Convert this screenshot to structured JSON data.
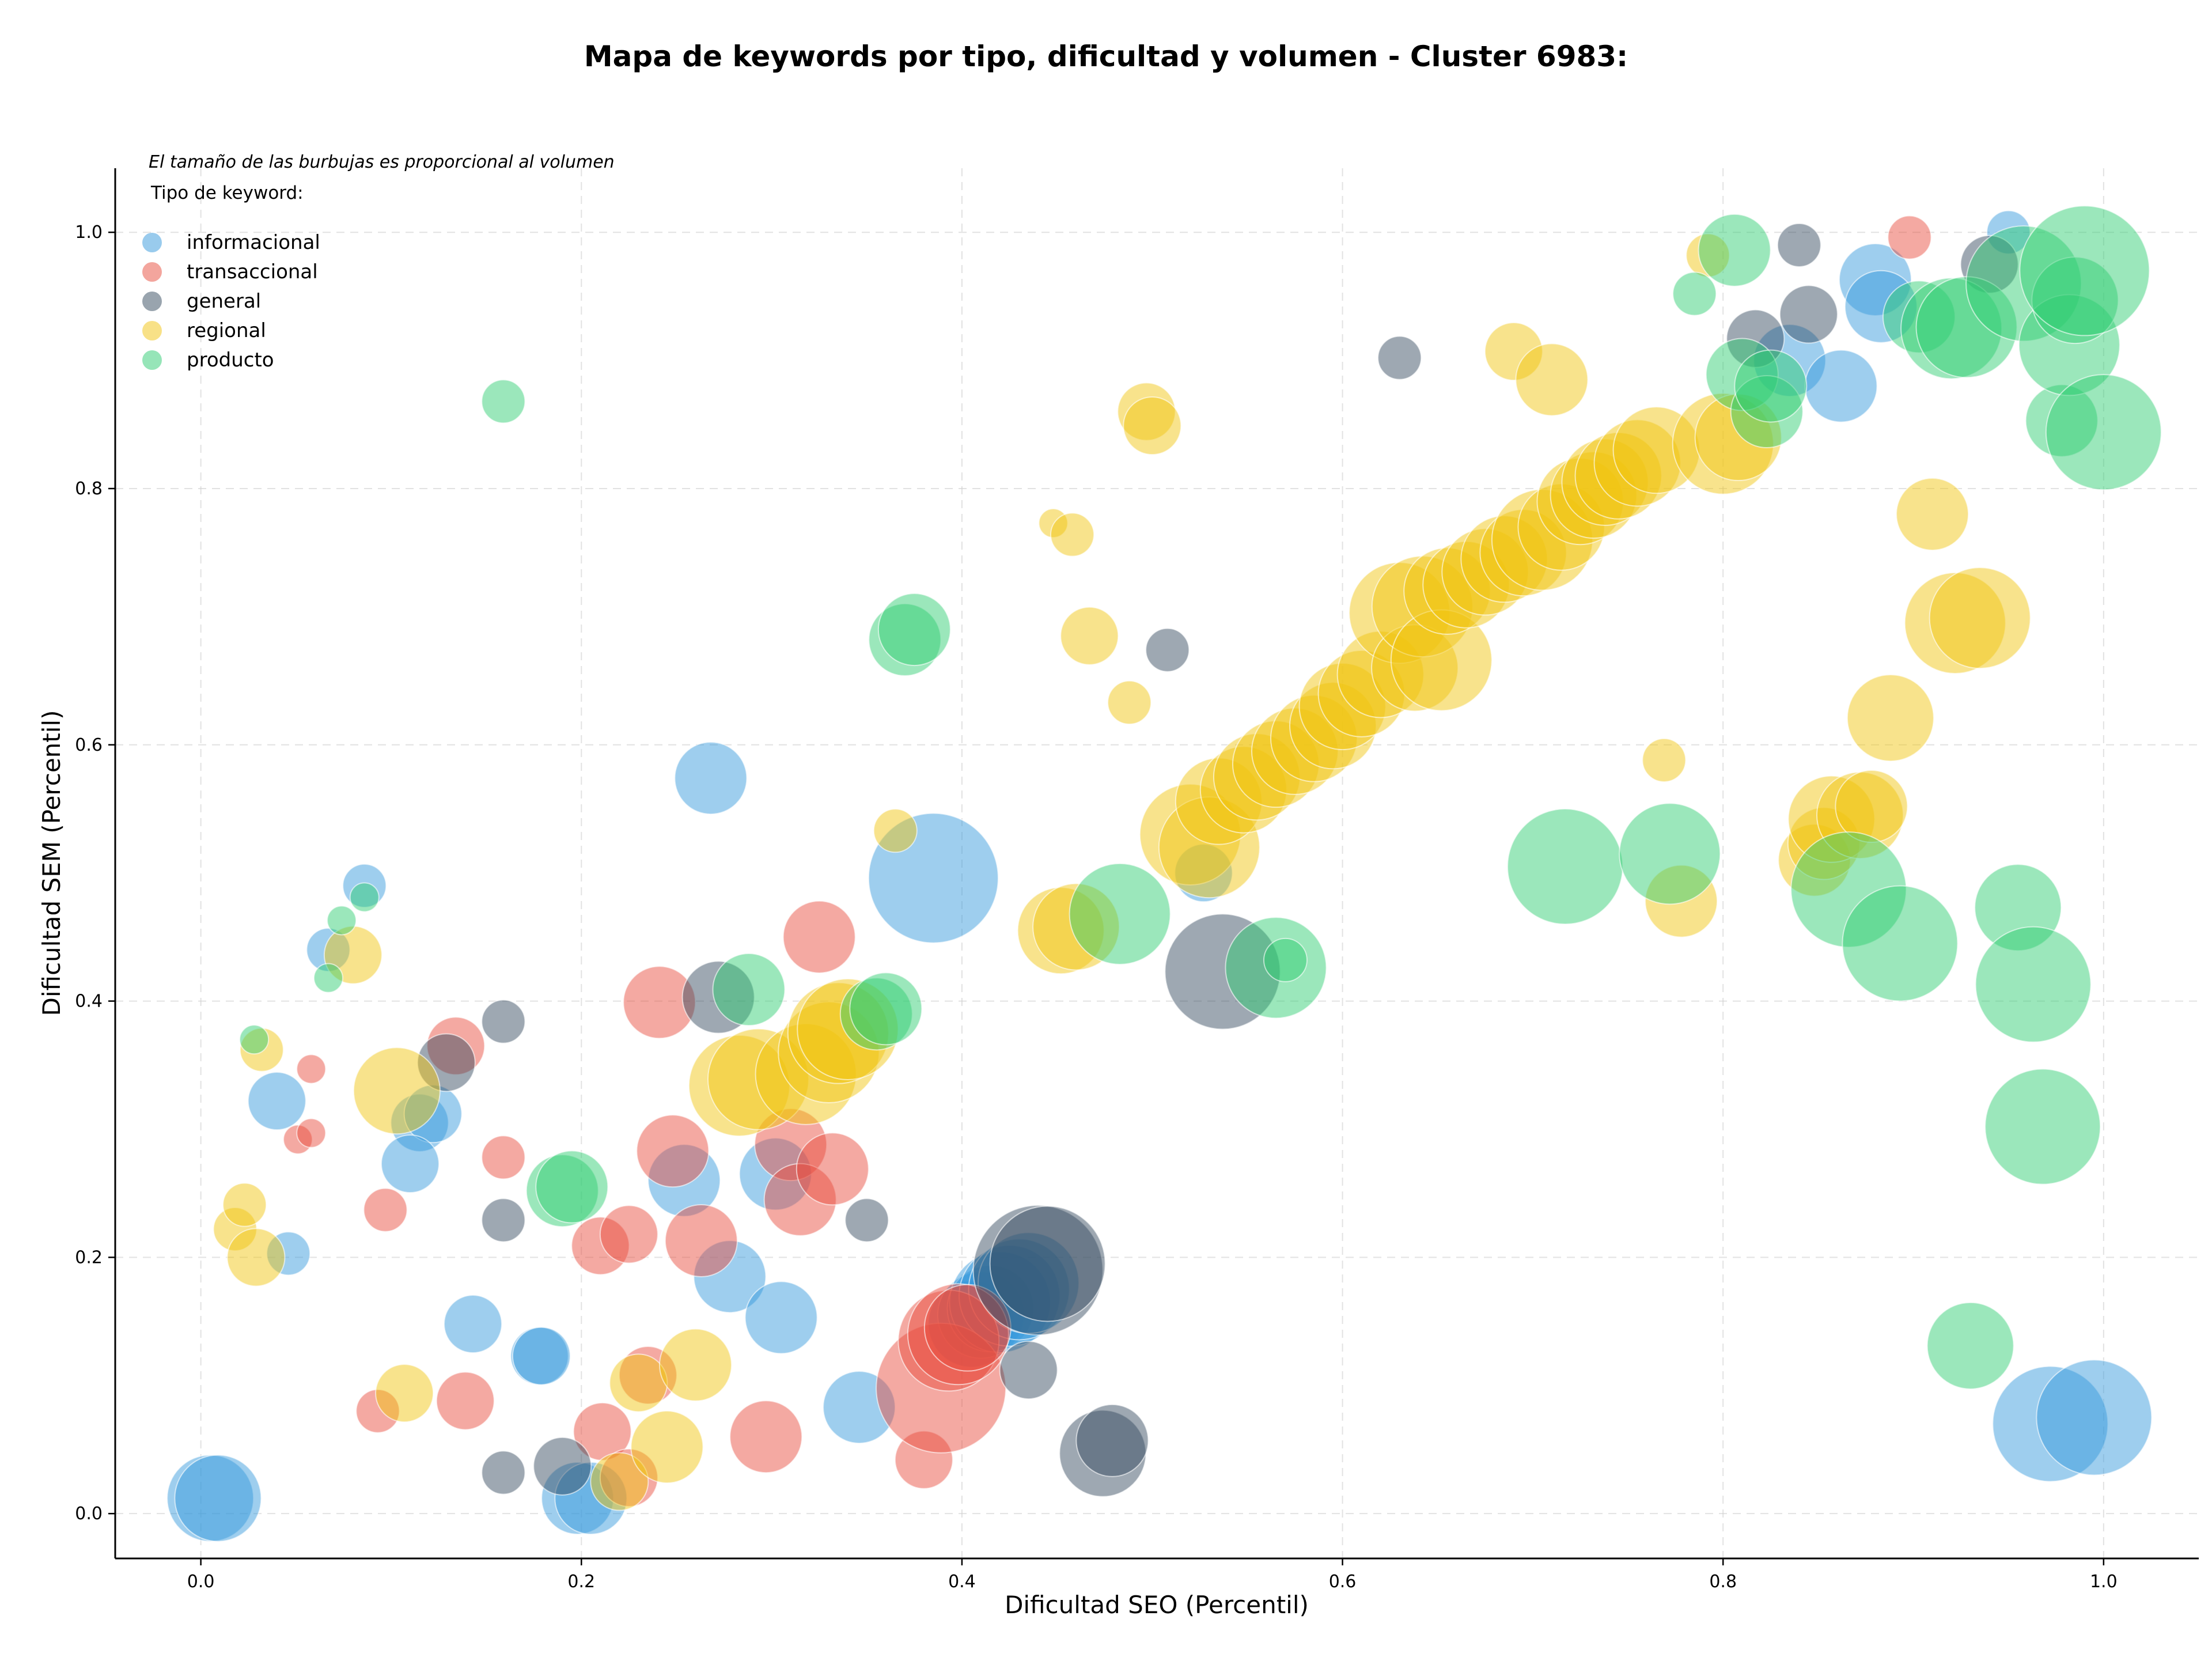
{
  "chart_data": {
    "type": "scatter",
    "title": "Mapa de keywords por tipo, dificultad y volumen - Cluster 6983:",
    "xlabel": "Dificultad SEO (Percentil)",
    "ylabel": "Dificultad SEM (Percentil)",
    "xlim": [
      -0.045,
      1.05
    ],
    "ylim": [
      -0.035,
      1.05
    ],
    "x_ticks": [
      0.0,
      0.2,
      0.4,
      0.6,
      0.8,
      1.0
    ],
    "y_ticks": [
      0.0,
      0.2,
      0.4,
      0.6,
      0.8,
      1.0
    ],
    "x_tick_labels": [
      "0.0",
      "0.2",
      "0.4",
      "0.6",
      "0.8",
      "1.0"
    ],
    "y_tick_labels": [
      "0.0",
      "0.2",
      "0.4",
      "0.6",
      "0.8",
      "1.0"
    ],
    "grid": true,
    "note": "El tamaño de las burbujas es proporcional al volumen",
    "legend_title": "Tipo de keyword:",
    "legend_position": "top-left",
    "series": [
      {
        "name": "informacional",
        "color": "#3498db",
        "points": [
          [
            0.005,
            0.012,
            6
          ],
          [
            0.009,
            0.012,
            6
          ],
          [
            0.046,
            0.203,
            3
          ],
          [
            0.04,
            0.322,
            4
          ],
          [
            0.067,
            0.44,
            3
          ],
          [
            0.086,
            0.49,
            3
          ],
          [
            0.115,
            0.305,
            4
          ],
          [
            0.122,
            0.312,
            4
          ],
          [
            0.11,
            0.273,
            4
          ],
          [
            0.143,
            0.148,
            4
          ],
          [
            0.178,
            0.123,
            4
          ],
          [
            0.179,
            0.123,
            4
          ],
          [
            0.198,
            0.012,
            5
          ],
          [
            0.205,
            0.012,
            5
          ],
          [
            0.254,
            0.26,
            5
          ],
          [
            0.268,
            0.574,
            5
          ],
          [
            0.278,
            0.185,
            5
          ],
          [
            0.302,
            0.265,
            5
          ],
          [
            0.305,
            0.153,
            5
          ],
          [
            0.346,
            0.083,
            5
          ],
          [
            0.385,
            0.496,
            9
          ],
          [
            0.405,
            0.148,
            6
          ],
          [
            0.41,
            0.155,
            6
          ],
          [
            0.415,
            0.16,
            6
          ],
          [
            0.42,
            0.165,
            7
          ],
          [
            0.425,
            0.17,
            7
          ],
          [
            0.43,
            0.175,
            7
          ],
          [
            0.435,
            0.18,
            7
          ],
          [
            0.527,
            0.5,
            4
          ],
          [
            0.835,
            0.9,
            5
          ],
          [
            0.862,
            0.88,
            5
          ],
          [
            0.88,
            0.963,
            5
          ],
          [
            0.883,
            0.942,
            5
          ],
          [
            0.95,
            1.0,
            3
          ],
          [
            0.972,
            0.07,
            8
          ],
          [
            0.995,
            0.075,
            8
          ]
        ]
      },
      {
        "name": "transaccional",
        "color": "#e74c3c",
        "points": [
          [
            0.051,
            0.292,
            2
          ],
          [
            0.058,
            0.297,
            2
          ],
          [
            0.058,
            0.347,
            2
          ],
          [
            0.093,
            0.08,
            3
          ],
          [
            0.097,
            0.237,
            3
          ],
          [
            0.134,
            0.365,
            4
          ],
          [
            0.139,
            0.088,
            4
          ],
          [
            0.159,
            0.278,
            3
          ],
          [
            0.211,
            0.064,
            4
          ],
          [
            0.21,
            0.209,
            4
          ],
          [
            0.225,
            0.218,
            4
          ],
          [
            0.225,
            0.028,
            4
          ],
          [
            0.235,
            0.108,
            4
          ],
          [
            0.241,
            0.399,
            5
          ],
          [
            0.248,
            0.283,
            5
          ],
          [
            0.263,
            0.213,
            5
          ],
          [
            0.297,
            0.06,
            5
          ],
          [
            0.31,
            0.288,
            5
          ],
          [
            0.315,
            0.245,
            5
          ],
          [
            0.325,
            0.45,
            5
          ],
          [
            0.332,
            0.269,
            5
          ],
          [
            0.38,
            0.042,
            4
          ],
          [
            0.389,
            0.098,
            9
          ],
          [
            0.393,
            0.135,
            7
          ],
          [
            0.398,
            0.14,
            7
          ],
          [
            0.403,
            0.145,
            6
          ],
          [
            0.898,
            0.996,
            3
          ]
        ]
      },
      {
        "name": "general",
        "color": "#34495e",
        "points": [
          [
            0.129,
            0.352,
            4
          ],
          [
            0.159,
            0.384,
            3
          ],
          [
            0.159,
            0.229,
            3
          ],
          [
            0.159,
            0.032,
            3
          ],
          [
            0.19,
            0.037,
            4
          ],
          [
            0.272,
            0.403,
            5
          ],
          [
            0.35,
            0.229,
            3
          ],
          [
            0.435,
            0.112,
            4
          ],
          [
            0.44,
            0.19,
            9
          ],
          [
            0.445,
            0.195,
            8
          ],
          [
            0.474,
            0.047,
            6
          ],
          [
            0.479,
            0.057,
            5
          ],
          [
            0.508,
            0.674,
            3
          ],
          [
            0.537,
            0.423,
            8
          ],
          [
            0.63,
            0.902,
            3
          ],
          [
            0.817,
            0.917,
            4
          ],
          [
            0.84,
            0.99,
            3
          ],
          [
            0.845,
            0.936,
            4
          ],
          [
            0.94,
            0.975,
            4
          ]
        ]
      },
      {
        "name": "regional",
        "color": "#f1c40f",
        "points": [
          [
            0.018,
            0.222,
            3
          ],
          [
            0.023,
            0.241,
            3
          ],
          [
            0.029,
            0.2,
            4
          ],
          [
            0.032,
            0.362,
            3
          ],
          [
            0.08,
            0.436,
            4
          ],
          [
            0.103,
            0.33,
            6
          ],
          [
            0.107,
            0.094,
            4
          ],
          [
            0.22,
            0.025,
            4
          ],
          [
            0.23,
            0.102,
            4
          ],
          [
            0.245,
            0.052,
            5
          ],
          [
            0.26,
            0.116,
            5
          ],
          [
            0.283,
            0.334,
            7
          ],
          [
            0.293,
            0.339,
            7
          ],
          [
            0.318,
            0.343,
            7
          ],
          [
            0.33,
            0.36,
            7
          ],
          [
            0.335,
            0.375,
            7
          ],
          [
            0.34,
            0.378,
            7
          ],
          [
            0.365,
            0.533,
            3
          ],
          [
            0.452,
            0.455,
            6
          ],
          [
            0.46,
            0.458,
            6
          ],
          [
            0.448,
            0.773,
            2
          ],
          [
            0.458,
            0.764,
            3
          ],
          [
            0.467,
            0.685,
            4
          ],
          [
            0.488,
            0.633,
            3
          ],
          [
            0.497,
            0.86,
            4
          ],
          [
            0.5,
            0.849,
            4
          ],
          [
            0.52,
            0.53,
            7
          ],
          [
            0.53,
            0.52,
            7
          ],
          [
            0.535,
            0.556,
            6
          ],
          [
            0.548,
            0.565,
            6
          ],
          [
            0.555,
            0.575,
            6
          ],
          [
            0.565,
            0.585,
            6
          ],
          [
            0.575,
            0.595,
            6
          ],
          [
            0.585,
            0.605,
            6
          ],
          [
            0.595,
            0.615,
            6
          ],
          [
            0.6,
            0.63,
            6
          ],
          [
            0.61,
            0.64,
            6
          ],
          [
            0.62,
            0.655,
            6
          ],
          [
            0.63,
            0.703,
            7
          ],
          [
            0.638,
            0.66,
            6
          ],
          [
            0.642,
            0.708,
            7
          ],
          [
            0.652,
            0.666,
            7
          ],
          [
            0.655,
            0.72,
            6
          ],
          [
            0.665,
            0.725,
            6
          ],
          [
            0.675,
            0.735,
            6
          ],
          [
            0.685,
            0.745,
            6
          ],
          [
            0.69,
            0.907,
            4
          ],
          [
            0.695,
            0.75,
            6
          ],
          [
            0.705,
            0.76,
            7
          ],
          [
            0.71,
            0.885,
            5
          ],
          [
            0.715,
            0.77,
            6
          ],
          [
            0.725,
            0.79,
            6
          ],
          [
            0.732,
            0.795,
            6
          ],
          [
            0.738,
            0.805,
            6
          ],
          [
            0.745,
            0.81,
            6
          ],
          [
            0.755,
            0.82,
            6
          ],
          [
            0.765,
            0.83,
            6
          ],
          [
            0.769,
            0.588,
            3
          ],
          [
            0.778,
            0.478,
            5
          ],
          [
            0.792,
            0.982,
            3
          ],
          [
            0.8,
            0.835,
            7
          ],
          [
            0.808,
            0.84,
            6
          ],
          [
            0.848,
            0.51,
            5
          ],
          [
            0.853,
            0.523,
            5
          ],
          [
            0.857,
            0.542,
            6
          ],
          [
            0.872,
            0.545,
            6
          ],
          [
            0.878,
            0.552,
            5
          ],
          [
            0.888,
            0.621,
            6
          ],
          [
            0.91,
            0.78,
            5
          ],
          [
            0.922,
            0.695,
            7
          ],
          [
            0.935,
            0.699,
            7
          ]
        ]
      },
      {
        "name": "producto",
        "color": "#2ecc71",
        "points": [
          [
            0.028,
            0.37,
            2
          ],
          [
            0.067,
            0.418,
            2
          ],
          [
            0.074,
            0.463,
            2
          ],
          [
            0.086,
            0.481,
            2
          ],
          [
            0.159,
            0.868,
            3
          ],
          [
            0.19,
            0.252,
            5
          ],
          [
            0.195,
            0.255,
            5
          ],
          [
            0.288,
            0.409,
            5
          ],
          [
            0.355,
            0.39,
            5
          ],
          [
            0.36,
            0.394,
            5
          ],
          [
            0.37,
            0.682,
            5
          ],
          [
            0.375,
            0.69,
            5
          ],
          [
            0.483,
            0.468,
            7
          ],
          [
            0.565,
            0.426,
            7
          ],
          [
            0.57,
            0.432,
            3
          ],
          [
            0.717,
            0.505,
            8
          ],
          [
            0.772,
            0.515,
            7
          ],
          [
            0.785,
            0.952,
            3
          ],
          [
            0.806,
            0.986,
            5
          ],
          [
            0.81,
            0.889,
            5
          ],
          [
            0.823,
            0.86,
            5
          ],
          [
            0.825,
            0.88,
            5
          ],
          [
            0.866,
            0.487,
            8
          ],
          [
            0.893,
            0.445,
            8
          ],
          [
            0.903,
            0.934,
            5
          ],
          [
            0.92,
            0.925,
            7
          ],
          [
            0.928,
            0.926,
            7
          ],
          [
            0.93,
            0.131,
            6
          ],
          [
            0.955,
            0.473,
            6
          ],
          [
            0.958,
            0.96,
            8
          ],
          [
            0.963,
            0.413,
            8
          ],
          [
            0.968,
            0.302,
            8
          ],
          [
            0.978,
            0.853,
            5
          ],
          [
            0.982,
            0.912,
            7
          ],
          [
            0.985,
            0.947,
            6
          ],
          [
            0.99,
            0.97,
            9
          ],
          [
            1.0,
            0.844,
            8
          ]
        ]
      }
    ]
  }
}
